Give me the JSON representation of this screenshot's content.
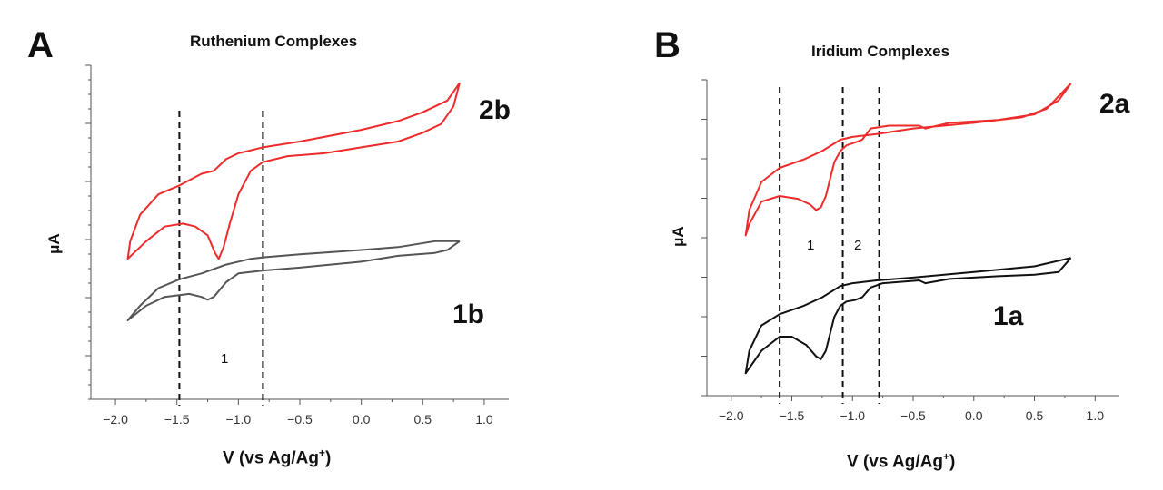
{
  "chart_data": [
    {
      "panel": "A",
      "type": "line",
      "title": "Ruthenium Complexes",
      "xlabel_main": "V (vs Ag/Ag",
      "xlabel_sup": "+",
      "xlabel_close": ")",
      "ylabel": "μA",
      "xlim": [
        -2.2,
        1.2
      ],
      "xticks": [
        -2.0,
        -1.5,
        -1.0,
        -0.5,
        0.0,
        0.5,
        1.0
      ],
      "xtick_labels": [
        "−2.0",
        "−1.5",
        "−1.0",
        "−0.5",
        "0.0",
        "0.5",
        "1.0"
      ],
      "ylim": [
        0,
        100
      ],
      "dashed_lines": [
        -1.48,
        -0.8
      ],
      "series": [
        {
          "name": "2b",
          "color": "#ee2b2b",
          "points": [
            [
              0.8,
              94
            ],
            [
              0.75,
              86
            ],
            [
              0.65,
              80
            ],
            [
              0.5,
              77
            ],
            [
              0.3,
              74
            ],
            [
              0.0,
              72
            ],
            [
              -0.3,
              70
            ],
            [
              -0.6,
              69
            ],
            [
              -0.8,
              67
            ],
            [
              -0.9,
              64
            ],
            [
              -1.0,
              56
            ],
            [
              -1.07,
              46
            ],
            [
              -1.12,
              38
            ],
            [
              -1.16,
              34
            ],
            [
              -1.19,
              36
            ],
            [
              -1.25,
              42
            ],
            [
              -1.35,
              45
            ],
            [
              -1.45,
              46
            ],
            [
              -1.6,
              45
            ],
            [
              -1.75,
              40
            ],
            [
              -1.85,
              36
            ],
            [
              -1.9,
              34
            ],
            [
              -1.88,
              40
            ],
            [
              -1.8,
              49
            ],
            [
              -1.65,
              56
            ],
            [
              -1.48,
              59
            ],
            [
              -1.3,
              63
            ],
            [
              -1.2,
              64
            ],
            [
              -1.1,
              68
            ],
            [
              -1.0,
              70
            ],
            [
              -0.9,
              71
            ],
            [
              -0.8,
              72
            ],
            [
              -0.5,
              74
            ],
            [
              0.0,
              78
            ],
            [
              0.3,
              81
            ],
            [
              0.5,
              84
            ],
            [
              0.7,
              88
            ],
            [
              0.8,
              94
            ]
          ]
        },
        {
          "name": "1b",
          "color": "#555555",
          "points": [
            [
              0.8,
              40
            ],
            [
              0.7,
              37
            ],
            [
              0.6,
              36
            ],
            [
              0.3,
              35
            ],
            [
              0.0,
              33
            ],
            [
              -0.5,
              31
            ],
            [
              -0.8,
              30
            ],
            [
              -1.0,
              29
            ],
            [
              -1.1,
              26
            ],
            [
              -1.2,
              21
            ],
            [
              -1.25,
              20
            ],
            [
              -1.3,
              21
            ],
            [
              -1.4,
              22
            ],
            [
              -1.6,
              21
            ],
            [
              -1.75,
              18
            ],
            [
              -1.9,
              13
            ],
            [
              -1.8,
              18
            ],
            [
              -1.65,
              24
            ],
            [
              -1.48,
              27
            ],
            [
              -1.3,
              29
            ],
            [
              -1.1,
              32
            ],
            [
              -0.9,
              34
            ],
            [
              -0.8,
              34.5
            ],
            [
              -0.5,
              35.5
            ],
            [
              0.0,
              37
            ],
            [
              0.3,
              38
            ],
            [
              0.6,
              40
            ],
            [
              0.8,
              40
            ]
          ]
        }
      ],
      "compound_labels": [
        "2b",
        "1b"
      ],
      "peak_labels": [
        "1"
      ]
    },
    {
      "panel": "B",
      "type": "line",
      "title": "Iridium Complexes",
      "xlabel_main": "V (vs Ag/Ag",
      "xlabel_sup": "+",
      "xlabel_close": ")",
      "ylabel": "μA",
      "xlim": [
        -2.2,
        1.2
      ],
      "xticks": [
        -2.0,
        -1.5,
        -1.0,
        -0.5,
        0.0,
        0.5,
        1.0
      ],
      "xtick_labels": [
        "−2.0",
        "−1.5",
        "−1.0",
        "−0.5",
        "0.0",
        "0.5",
        "1.0"
      ],
      "ylim": [
        0,
        100
      ],
      "dashed_lines": [
        -1.6,
        -1.08,
        -0.78
      ],
      "series": [
        {
          "name": "2a",
          "color": "#ee2b2b",
          "points": [
            [
              0.8,
              100
            ],
            [
              0.7,
              94
            ],
            [
              0.5,
              89
            ],
            [
              0.2,
              87
            ],
            [
              -0.2,
              86
            ],
            [
              -0.4,
              84
            ],
            [
              -0.45,
              85
            ],
            [
              -0.7,
              85
            ],
            [
              -0.85,
              84
            ],
            [
              -0.92,
              80
            ],
            [
              -0.98,
              79
            ],
            [
              -1.05,
              78
            ],
            [
              -1.1,
              76
            ],
            [
              -1.15,
              72
            ],
            [
              -1.22,
              60
            ],
            [
              -1.26,
              56
            ],
            [
              -1.3,
              55
            ],
            [
              -1.35,
              57
            ],
            [
              -1.45,
              59
            ],
            [
              -1.6,
              60
            ],
            [
              -1.75,
              58
            ],
            [
              -1.85,
              50
            ],
            [
              -1.88,
              46
            ],
            [
              -1.85,
              55
            ],
            [
              -1.75,
              65
            ],
            [
              -1.6,
              70
            ],
            [
              -1.4,
              73
            ],
            [
              -1.25,
              76
            ],
            [
              -1.1,
              80
            ],
            [
              -1.0,
              81
            ],
            [
              -0.8,
              82
            ],
            [
              -0.5,
              84
            ],
            [
              0.0,
              86
            ],
            [
              0.4,
              88
            ],
            [
              0.6,
              91
            ],
            [
              0.8,
              100
            ]
          ]
        },
        {
          "name": "1a",
          "color": "#111111",
          "points": [
            [
              0.8,
              38
            ],
            [
              0.7,
              33
            ],
            [
              0.5,
              32
            ],
            [
              0.2,
              31.5
            ],
            [
              -0.2,
              30.5
            ],
            [
              -0.4,
              29
            ],
            [
              -0.45,
              30
            ],
            [
              -0.75,
              29
            ],
            [
              -0.85,
              27.5
            ],
            [
              -0.92,
              24
            ],
            [
              -0.98,
              23
            ],
            [
              -1.05,
              22.5
            ],
            [
              -1.1,
              21
            ],
            [
              -1.15,
              17
            ],
            [
              -1.22,
              5
            ],
            [
              -1.26,
              2
            ],
            [
              -1.3,
              3
            ],
            [
              -1.38,
              7
            ],
            [
              -1.5,
              10
            ],
            [
              -1.6,
              10
            ],
            [
              -1.75,
              5
            ],
            [
              -1.88,
              -3
            ],
            [
              -1.85,
              5
            ],
            [
              -1.75,
              14
            ],
            [
              -1.6,
              18
            ],
            [
              -1.4,
              21
            ],
            [
              -1.25,
              24
            ],
            [
              -1.1,
              28
            ],
            [
              -1.0,
              29
            ],
            [
              -0.8,
              30
            ],
            [
              -0.5,
              31
            ],
            [
              0.0,
              33
            ],
            [
              0.5,
              35
            ],
            [
              0.8,
              38
            ]
          ]
        }
      ],
      "compound_labels": [
        "2a",
        "1a"
      ],
      "peak_labels": [
        "1",
        "2"
      ]
    }
  ]
}
